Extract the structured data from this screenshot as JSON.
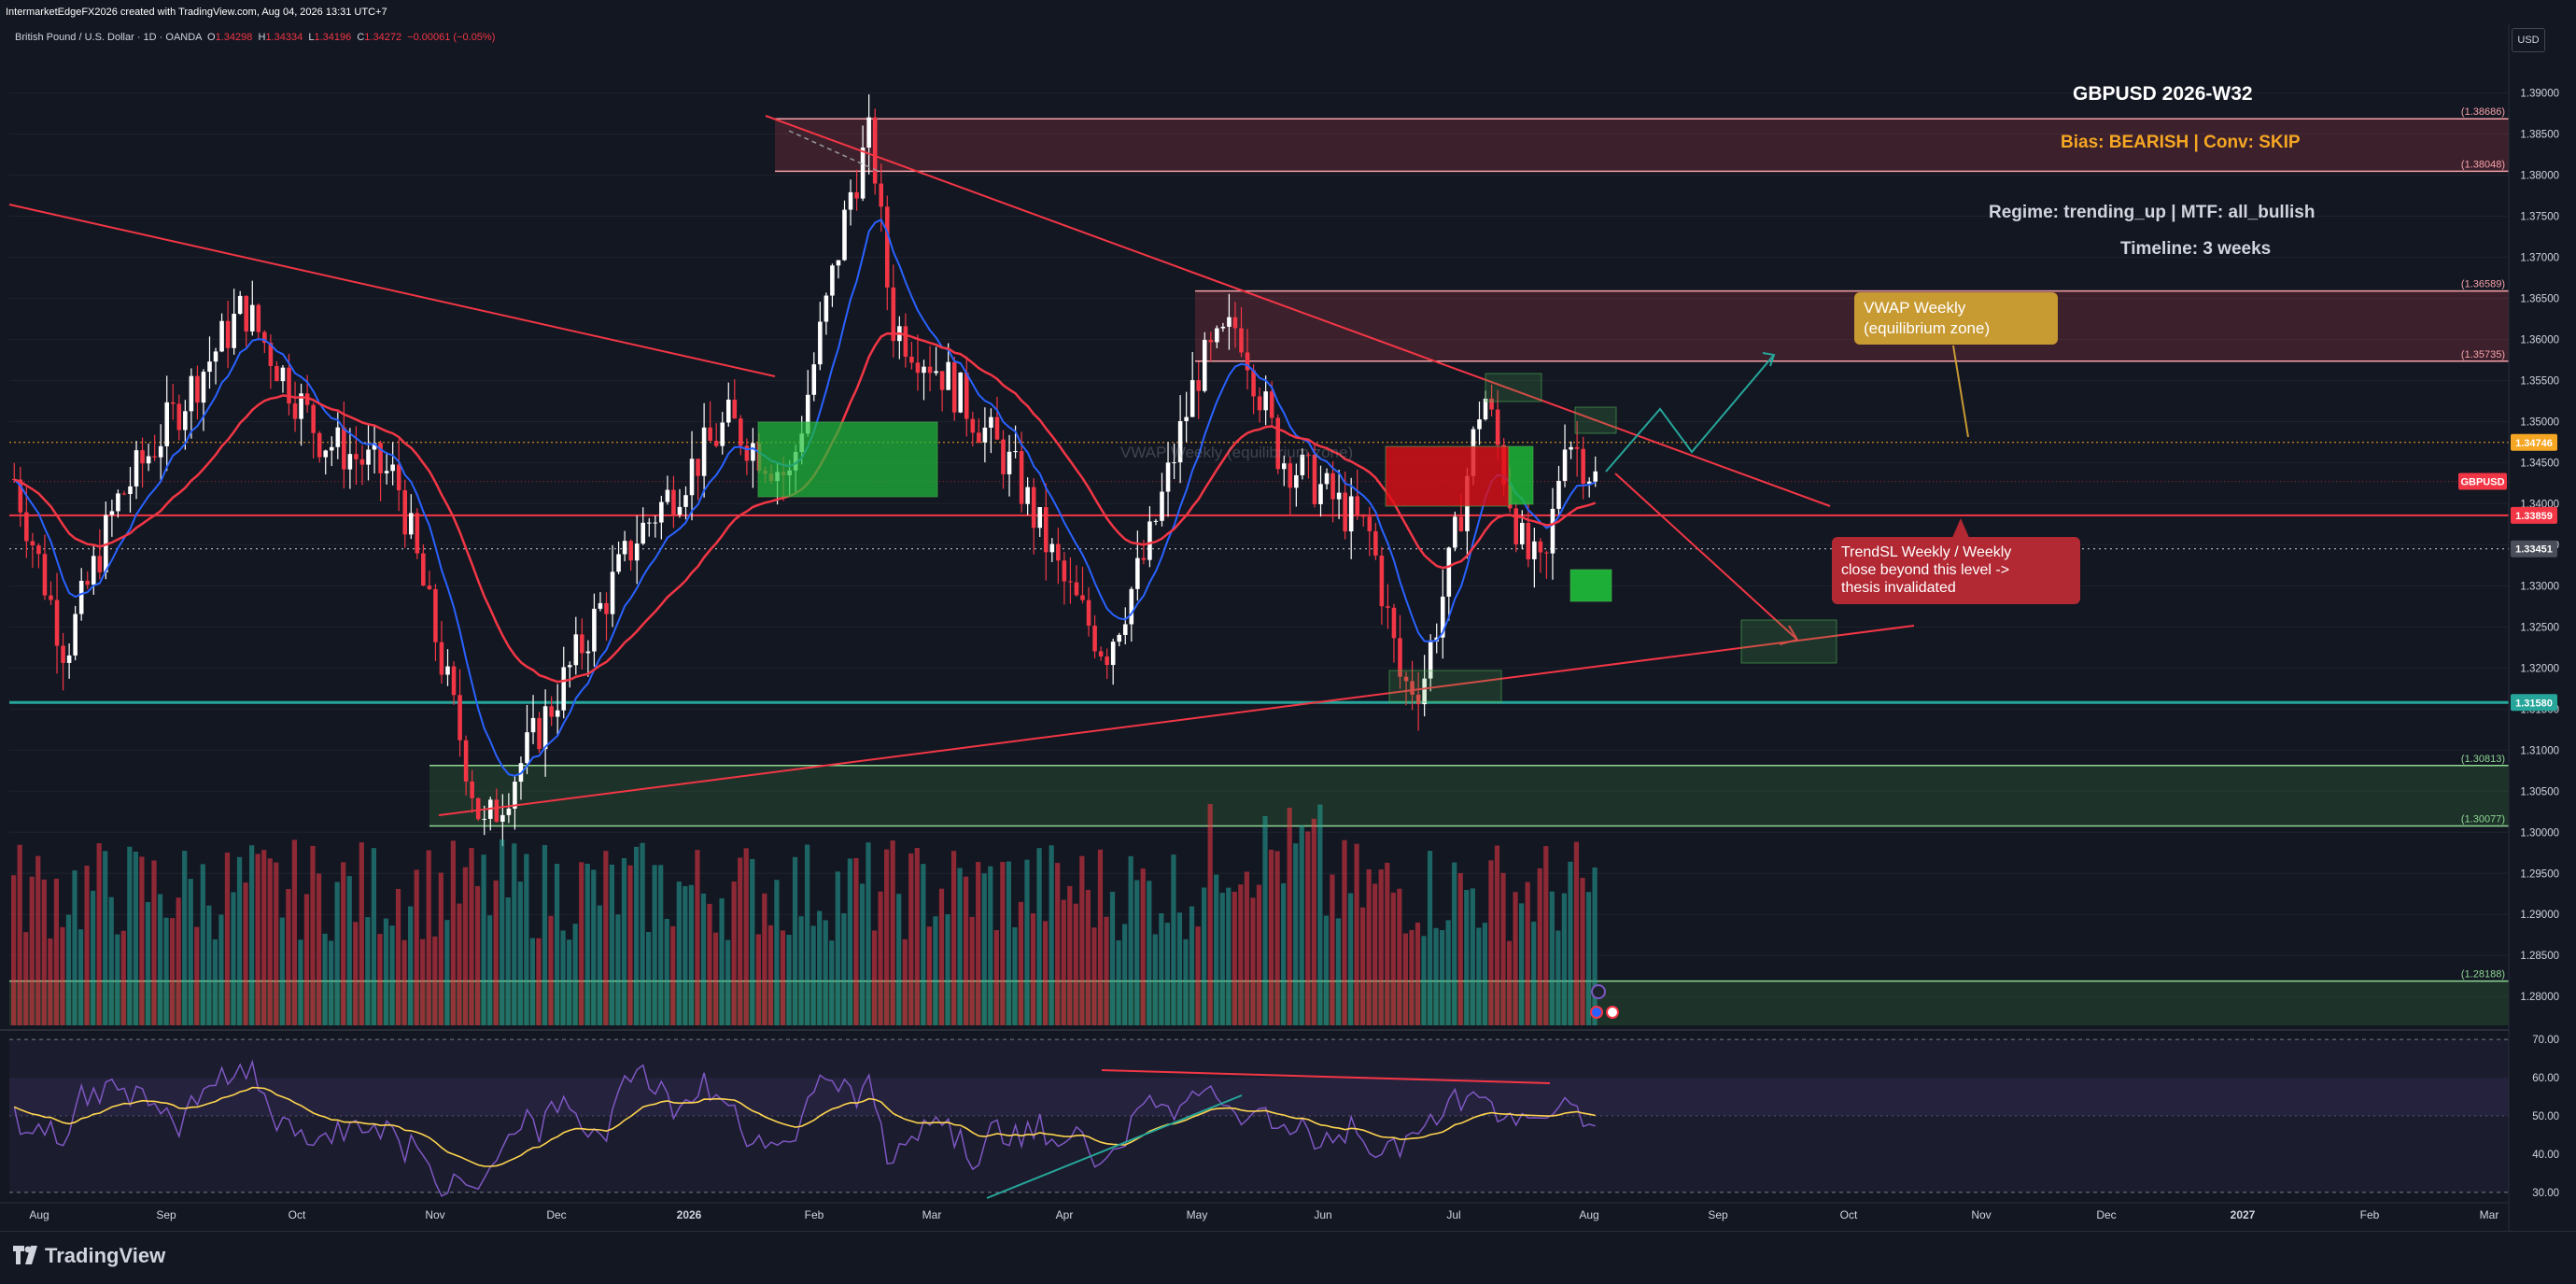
{
  "header": {
    "credit": "IntermarketEdgeFX2026 created with TradingView.com, Aug 04, 2026 13:31 UTC+7",
    "symbol_line": "British Pound / U.S. Dollar · 1D · OANDA",
    "o_label": "O",
    "o_value": "1.34298",
    "h_label": "H",
    "h_value": "1.34334",
    "l_label": "L",
    "l_value": "1.34196",
    "c_label": "C",
    "c_value": "1.34272",
    "change": "−0.00061 (−0.05%)",
    "currency": "USD"
  },
  "annotations": {
    "title": "GBPUSD 2026-W32",
    "bias": "Bias: BEARISH | Conv: SKIP",
    "regime": "Regime: trending_up | MTF: all_bullish",
    "timeline": "Timeline: 3 weeks",
    "vwap_box_line1": "VWAP Weekly",
    "vwap_box_line2": "(equilibrium zone)",
    "trendsl_line1": "TrendSL Weekly / Weekly",
    "trendsl_line2": "close beyond this level ->",
    "trendsl_line3": "thesis invalidated",
    "vwap_faded": "VWAP Weekly (equilibrium zone)"
  },
  "footer": {
    "brand": "TradingView"
  },
  "colors": {
    "background": "#131722",
    "bull": "#ffffff",
    "bear": "#f23645",
    "ema_fast": "#2962ff",
    "ema_slow": "#f23645",
    "support": "#26a69a",
    "zone_red": "#f7525f",
    "zone_green": "#4caf50",
    "rsi": "#7e57c2",
    "rsi_ma": "#ffd54f",
    "vwap_box": "#c89a32",
    "trendsl_box": "#b22833"
  },
  "chart_data": {
    "type": "candlestick",
    "symbol": "GBPUSD",
    "timeframe": "1D",
    "price_axis": {
      "ticks": [
        "1.39000",
        "1.38500",
        "1.38000",
        "1.37500",
        "1.37000",
        "1.36500",
        "1.36000",
        "1.35500",
        "1.35000",
        "1.34500",
        "1.34000",
        "1.33500",
        "1.33000",
        "1.32500",
        "1.32000",
        "1.31500",
        "1.31000",
        "1.30500",
        "1.30000",
        "1.29500",
        "1.29000",
        "1.28500",
        "1.28000"
      ],
      "ylim": [
        1.2765,
        1.3945
      ]
    },
    "time_axis": {
      "labels": [
        "Aug",
        "Sep",
        "Oct",
        "Nov",
        "Dec",
        "2026",
        "Feb",
        "Mar",
        "Apr",
        "May",
        "Jun",
        "Jul",
        "Aug",
        "Sep",
        "Oct",
        "Nov",
        "Dec",
        "2027",
        "Feb",
        "Mar"
      ]
    },
    "price_badges": [
      {
        "label": "1.34746",
        "value": 1.34746,
        "color": "#f5a623"
      },
      {
        "label": "GBPUSD",
        "value": 1.34272,
        "color": "#f23645"
      },
      {
        "label": "1.33859",
        "value": 1.33859,
        "color": "#f23645"
      },
      {
        "label": "1.33451",
        "value": 1.33451,
        "color": "#4a4e5a"
      },
      {
        "label": "1.31580",
        "value": 1.3158,
        "color": "#26a69a"
      }
    ],
    "zones": [
      {
        "kind": "resistance",
        "top": 1.38686,
        "bottom": 1.38048,
        "top_label": "(1.38686)",
        "bottom_label": "(1.38048)"
      },
      {
        "kind": "resistance",
        "top": 1.36589,
        "bottom": 1.35735,
        "top_label": "(1.36589)",
        "bottom_label": "(1.35735)"
      },
      {
        "kind": "support",
        "top": 1.30813,
        "bottom": 1.30077,
        "top_label": "(1.30813)",
        "bottom_label": "(1.30077)"
      },
      {
        "kind": "support",
        "top": 1.28188,
        "bottom": 1.2765,
        "top_label": "(1.28188)"
      }
    ],
    "levels": {
      "dotted_high": 1.34746,
      "trend_sl": 1.33859,
      "dotted_low": 1.33451,
      "support": 1.3158
    },
    "rsi": {
      "ticks": [
        "70.00",
        "60.00",
        "50.00",
        "40.00",
        "30.00"
      ],
      "ylim": [
        28,
        72
      ],
      "upper": 70,
      "lower": 30
    }
  }
}
